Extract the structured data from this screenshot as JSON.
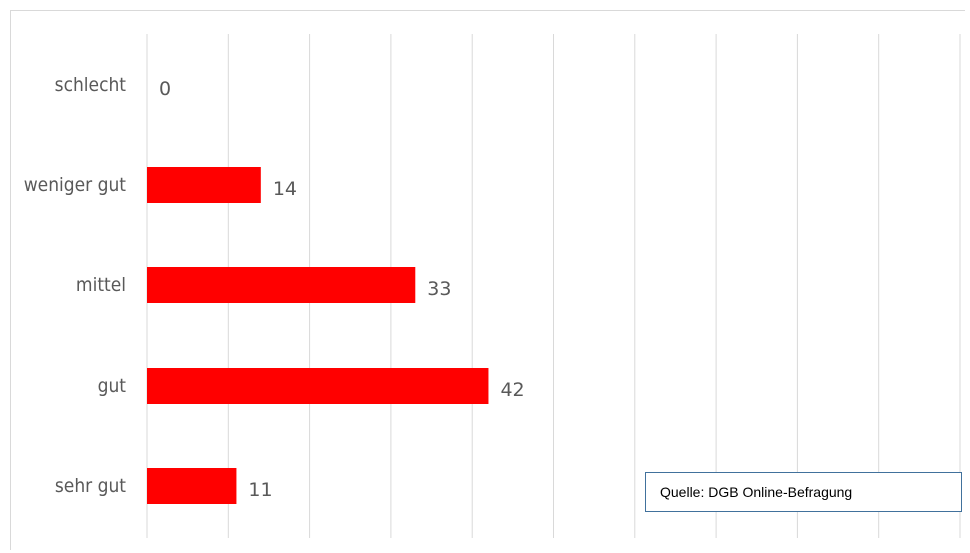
{
  "chart_data": {
    "type": "bar",
    "orientation": "horizontal",
    "categories": [
      "schlecht",
      "weniger gut",
      "mittel",
      "gut",
      "sehr gut"
    ],
    "values": [
      0,
      14,
      33,
      42,
      11
    ],
    "xlim": [
      0,
      100
    ],
    "grid": true,
    "bar_color": "#ff0000",
    "gridline_color": "#d9d9d9",
    "label_color": "#595959"
  },
  "source_note": "Quelle: DGB Online-Befragung"
}
